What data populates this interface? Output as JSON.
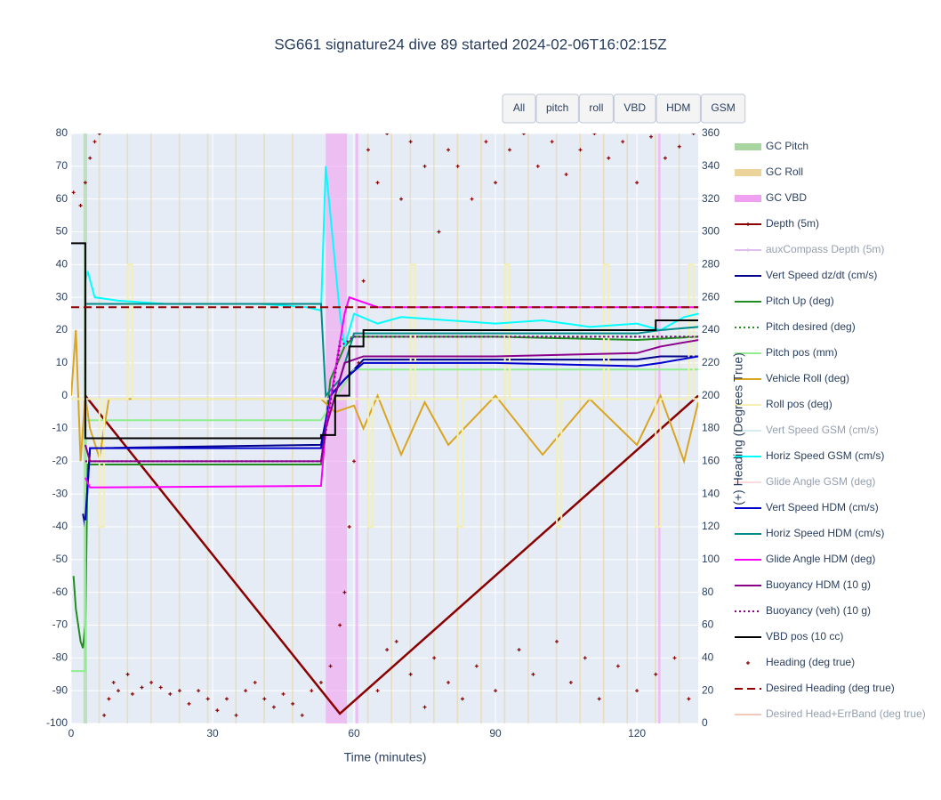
{
  "chart_data": {
    "type": "line",
    "title": "SG661 signature24 dive 89 started 2024-02-06T16:02:15Z",
    "xlabel": "Time (minutes)",
    "y2label": "(+) Heading (Degrees True)",
    "xlim": [
      0,
      133
    ],
    "xticks": [
      0,
      30,
      60,
      90,
      120
    ],
    "ylim": [
      -100,
      80
    ],
    "yticks": [
      -100,
      -90,
      -80,
      -70,
      -60,
      -50,
      -40,
      -30,
      -20,
      -10,
      0,
      10,
      20,
      30,
      40,
      50,
      60,
      70,
      80
    ],
    "y2lim": [
      0,
      360
    ],
    "y2ticks": [
      0,
      20,
      40,
      60,
      80,
      100,
      120,
      140,
      160,
      180,
      200,
      220,
      240,
      260,
      280,
      300,
      320,
      340,
      360
    ],
    "grid": true,
    "buttons": [
      "All",
      "pitch",
      "roll",
      "VBD",
      "HDM",
      "GSM"
    ],
    "series": [
      {
        "name": "GC Pitch",
        "style": "band",
        "color": "#a8d5a0",
        "bands": [
          [
            2.6,
            3.4
          ]
        ]
      },
      {
        "name": "GC Roll",
        "style": "band",
        "color": "#ecd39a",
        "bands": [
          [
            5.8,
            6.1
          ],
          [
            11.8,
            12.1
          ],
          [
            16.8,
            17.1
          ],
          [
            22.8,
            23.1
          ],
          [
            28.8,
            29.1
          ],
          [
            34.8,
            35.1
          ],
          [
            40.8,
            41.1
          ],
          [
            46.8,
            47.1
          ],
          [
            62.8,
            63.1
          ],
          [
            67.8,
            68.1
          ],
          [
            71.8,
            72.1
          ],
          [
            76.8,
            77.1
          ],
          [
            81.8,
            82.1
          ],
          [
            86.8,
            87.1
          ],
          [
            91.8,
            92.1
          ],
          [
            96.8,
            97.1
          ],
          [
            102.8,
            103.1
          ],
          [
            107.8,
            108.1
          ],
          [
            112.8,
            113.1
          ],
          [
            117.8,
            118.1
          ],
          [
            123.8,
            124.1
          ],
          [
            128.8,
            129.1
          ]
        ]
      },
      {
        "name": "GC VBD",
        "style": "band",
        "color": "#f0a0f0",
        "bands": [
          [
            54,
            58.5
          ],
          [
            60.3,
            60.9
          ],
          [
            124.5,
            125
          ]
        ]
      },
      {
        "name": "Depth (5m)",
        "style": "marker-line",
        "color": "#8b0000",
        "x": [
          3,
          57,
          133
        ],
        "values": [
          0,
          -97,
          0
        ]
      },
      {
        "name": "auxCompass Depth (5m)",
        "style": "marker-line",
        "color": "#c080e0",
        "hidden": true
      },
      {
        "name": "Vert Speed dz/dt (cm/s)",
        "style": "line",
        "color": "#00008b",
        "x": [
          2.5,
          3,
          4,
          53,
          55,
          58,
          62,
          90,
          120,
          125,
          133
        ],
        "values": [
          -36,
          -40,
          -16,
          -15,
          0,
          5,
          11,
          11,
          11,
          12,
          12
        ]
      },
      {
        "name": "Pitch Up (deg)",
        "style": "line",
        "color": "#228b22",
        "x": [
          0.5,
          1,
          1.5,
          2,
          2.5,
          3,
          3.5,
          5,
          30,
          53,
          55,
          58,
          60,
          90,
          120,
          133
        ],
        "values": [
          -55,
          -65,
          -70,
          -75,
          -77,
          -70,
          -21,
          -21,
          -21,
          -21,
          5,
          15,
          18,
          18,
          17,
          18
        ]
      },
      {
        "name": "Pitch desired (deg)",
        "style": "dot",
        "color": "#228b22",
        "x": [
          3,
          53,
          57,
          60,
          133
        ],
        "values": [
          -20,
          -20,
          17,
          18,
          18
        ]
      },
      {
        "name": "Pitch pos (mm)",
        "style": "line",
        "color": "#90ee90",
        "x": [
          0,
          3,
          3,
          53,
          60,
          133
        ],
        "values": [
          -84,
          -84,
          -7.5,
          -7.5,
          8,
          8
        ]
      },
      {
        "name": "Vehicle Roll (deg)",
        "style": "line",
        "color": "#daa520",
        "x": [
          0,
          1,
          2,
          3,
          4,
          6,
          8,
          10,
          20,
          30,
          40,
          50,
          53,
          56,
          60,
          62,
          65,
          70,
          75,
          80,
          90,
          100,
          110,
          120,
          125,
          130,
          133
        ],
        "values": [
          0,
          20,
          -20,
          0,
          -10,
          -19,
          -1,
          -1,
          -1,
          -1,
          -1,
          -1,
          -1,
          -5,
          -3,
          -10,
          0,
          -18,
          -2,
          -15,
          0,
          -18,
          -1,
          -15,
          0,
          -20,
          -2
        ]
      },
      {
        "name": "Roll pos (deg)",
        "style": "line",
        "color": "#f5f0b0",
        "x": [
          0,
          6,
          6,
          7,
          7,
          12,
          12,
          13,
          13,
          63,
          63,
          64,
          64,
          72,
          72,
          73,
          73,
          82,
          82,
          83,
          83,
          92,
          92,
          93,
          93,
          103,
          103,
          104,
          104,
          113,
          113,
          114,
          114,
          124,
          124,
          125,
          125,
          131,
          131,
          132,
          132,
          133
        ],
        "values": [
          -1,
          -1,
          -40,
          -40,
          -1,
          -1,
          40,
          40,
          -1,
          -1,
          -40,
          -40,
          -1,
          -1,
          40,
          40,
          -1,
          -1,
          -40,
          -40,
          -1,
          -1,
          40,
          40,
          -1,
          -1,
          -40,
          -40,
          -1,
          -1,
          40,
          40,
          -1,
          -1,
          -40,
          -40,
          -1,
          -1,
          40,
          40,
          -1,
          -1
        ]
      },
      {
        "name": "Vert Speed GSM (cm/s)",
        "style": "line",
        "color": "#add8e6",
        "hidden": true
      },
      {
        "name": "Horiz Speed GSM (cm/s)",
        "style": "line",
        "color": "#00ffff",
        "x": [
          3,
          3.5,
          5,
          10,
          20,
          30,
          40,
          50,
          53,
          54,
          55,
          56,
          57,
          58,
          60,
          65,
          70,
          80,
          90,
          100,
          110,
          120,
          125,
          130,
          133
        ],
        "values": [
          35,
          38,
          30,
          29,
          28,
          28,
          28,
          27,
          26,
          70,
          55,
          40,
          25,
          15,
          25,
          22,
          24,
          23,
          22,
          23,
          21,
          22,
          20,
          24,
          25
        ]
      },
      {
        "name": "Glide Angle GSM (deg)",
        "style": "line",
        "color": "#ffb6c1",
        "hidden": true
      },
      {
        "name": "Vert Speed HDM (cm/s)",
        "style": "line",
        "color": "#0000cd",
        "x": [
          3,
          4,
          53,
          55,
          58,
          62,
          90,
          120,
          125,
          133
        ],
        "values": [
          -38,
          -16,
          -16,
          0,
          5,
          10,
          10,
          9,
          10,
          12
        ]
      },
      {
        "name": "Horiz Speed HDM (cm/s)",
        "style": "line",
        "color": "#008b8b",
        "x": [
          3,
          4,
          53,
          54,
          57,
          60,
          90,
          120,
          125,
          133
        ],
        "values": [
          28,
          28,
          28,
          0,
          5,
          19,
          19,
          19,
          20,
          21
        ]
      },
      {
        "name": "Glide Angle HDM (deg)",
        "style": "line",
        "color": "#ff00ff",
        "x": [
          3,
          4,
          53,
          54,
          58,
          59,
          65,
          90,
          120,
          133
        ],
        "values": [
          -25,
          -28,
          -27.5,
          -10,
          25,
          30,
          27,
          27,
          27,
          27
        ]
      },
      {
        "name": "Buoyancy HDM (10 g)",
        "style": "line",
        "color": "#8b008b",
        "x": [
          3,
          4,
          53,
          54,
          58,
          62,
          90,
          120,
          125,
          133
        ],
        "values": [
          -15,
          -20,
          -20,
          -10,
          10,
          12,
          12,
          13,
          15,
          17
        ]
      },
      {
        "name": "Buoyancy (veh) (10 g)",
        "style": "dot",
        "color": "#8b008b",
        "x": [
          3,
          53,
          57,
          60,
          133
        ],
        "values": [
          -20,
          -20,
          15,
          18,
          18
        ]
      },
      {
        "name": "VBD pos (10 cc)",
        "style": "line",
        "color": "#000000",
        "x": [
          0,
          3,
          3,
          53,
          53,
          56,
          56,
          59,
          59,
          62,
          62,
          124,
          124,
          133
        ],
        "values": [
          46.5,
          46.5,
          -13,
          -13,
          -12,
          -12,
          0,
          0,
          15,
          15,
          20,
          20,
          23,
          23
        ]
      },
      {
        "name": "Heading (deg true)",
        "style": "marker",
        "axis": "y2",
        "color": "#8b0000",
        "x": [
          0.5,
          2,
          3,
          4,
          5,
          6,
          7,
          8,
          9,
          10,
          12,
          13,
          15,
          17,
          19,
          21,
          23,
          25,
          27,
          29,
          31,
          33,
          35,
          37,
          39,
          41,
          43,
          45,
          47,
          49,
          51,
          53,
          55,
          57,
          58,
          59,
          60,
          61,
          62,
          63,
          65,
          67,
          70,
          72,
          75,
          78,
          80,
          82,
          85,
          88,
          90,
          93,
          96,
          99,
          102,
          105,
          108,
          111,
          114,
          117,
          120,
          123,
          126,
          129,
          132,
          65,
          67,
          69,
          72,
          75,
          77,
          80,
          83,
          86,
          90,
          95,
          98,
          103,
          106,
          109,
          112,
          116,
          120,
          124,
          128,
          131
        ],
        "values": [
          324,
          316,
          330,
          345,
          355,
          360,
          5,
          15,
          25,
          20,
          30,
          18,
          22,
          25,
          22,
          18,
          20,
          12,
          20,
          15,
          8,
          15,
          5,
          20,
          25,
          15,
          10,
          18,
          12,
          5,
          20,
          25,
          35,
          60,
          80,
          120,
          160,
          220,
          270,
          350,
          330,
          360,
          320,
          355,
          340,
          300,
          350,
          340,
          320,
          355,
          330,
          350,
          360,
          340,
          355,
          335,
          350,
          360,
          345,
          355,
          330,
          358,
          345,
          352,
          360,
          20,
          45,
          50,
          30,
          10,
          40,
          25,
          15,
          35,
          20,
          45,
          30,
          50,
          25,
          40,
          15,
          35,
          20,
          30,
          40,
          15
        ]
      },
      {
        "name": "Desired Heading (deg true)",
        "style": "dash",
        "axis": "y2",
        "color": "#8b0000",
        "x": [
          0,
          133
        ],
        "values": [
          254,
          254
        ]
      },
      {
        "name": "Desired Head+ErrBand (deg true)",
        "style": "line",
        "color": "#e9967a",
        "hidden": true
      }
    ]
  }
}
